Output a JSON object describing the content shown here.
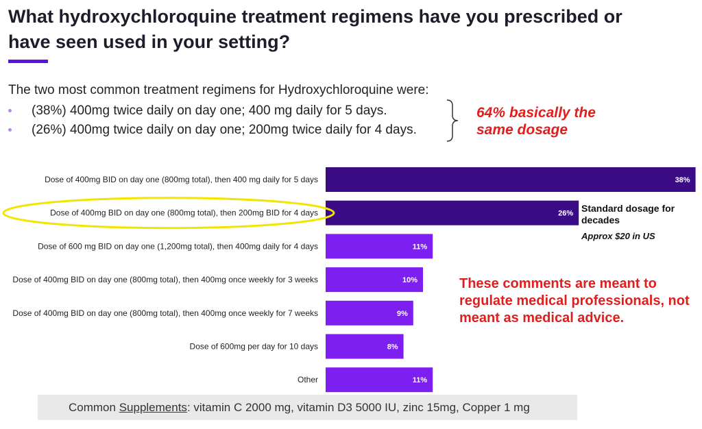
{
  "title": "What hydroxychloroquine treatment regimens have you prescribed or have seen used in your setting?",
  "accent_color": "#5a12e0",
  "summary": {
    "intro": "The two most common treatment regimens for Hydroxychloroquine were:",
    "bullets": [
      "(38%) 400mg twice daily on day one; 400 mg daily for 5 days.",
      "(26%) 400mg twice daily on day one; 200mg twice daily for 4 days."
    ]
  },
  "callouts": {
    "dosage_note": "64% basically the same dosage",
    "standard_dosage": "Standard dosage for decades",
    "price": "Approx $20 in US",
    "disclaimer": "These comments are meant to regulate medical professionals, not meant as medical advice.",
    "highlight_color": "#f2e600",
    "callout_color": "#e01e1e"
  },
  "supplements": {
    "label": "Common",
    "underlined": "Supplements",
    "text": ": vitamin C 2000 mg, vitamin D3 5000 IU, zinc 15mg, Copper 1 mg"
  },
  "chart_data": {
    "type": "bar",
    "orientation": "horizontal",
    "categories": [
      "Dose of 400mg BID on day one (800mg total), then 400 mg daily for 5 days",
      "Dose of 400mg BID on day one (800mg total), then 200mg BID for 4 days",
      "Dose of 600 mg BID on day one (1,200mg total), then 400mg daily for 4 days",
      "Dose of 400mg BID on day one (800mg total), then 400mg once weekly for 3 weeks",
      "Dose of 400mg BID on day one (800mg total), then 400mg once weekly for 7 weeks",
      "Dose of 600mg per day for 10 days",
      "Other"
    ],
    "values": [
      38,
      26,
      11,
      10,
      9,
      8,
      11
    ],
    "value_labels": [
      "38%",
      "26%",
      "11%",
      "10%",
      "9%",
      "8%",
      "11%"
    ],
    "unit": "%",
    "bar_colors": [
      "#3b0b86",
      "#3b0b86",
      "#7c1ff0",
      "#7c1ff0",
      "#7c1ff0",
      "#7c1ff0",
      "#7c1ff0"
    ],
    "highlighted_index": 1,
    "grid": false,
    "legend": "none"
  }
}
